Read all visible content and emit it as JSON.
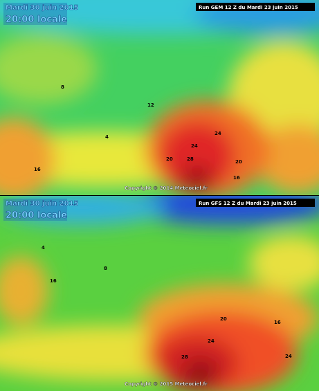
{
  "maps": [
    {
      "date": "Mardi 30 juin 2015",
      "time": "20:00 locale",
      "run": "Run GEM 12 Z du Mardi 23 juin 2015",
      "copyright": "Copyright © 2014 Meteociel.fr",
      "contour_labels": [
        28,
        24,
        24,
        20,
        20,
        16,
        16,
        12,
        8,
        4
      ]
    },
    {
      "date": "Mardi 30 juin 2015",
      "time": "20:00 locale",
      "run": "Run GFS 12 Z du Mardi 23 juin 2015",
      "copyright": "Copyright © 2015 Meteociel.fr",
      "contour_labels": [
        28,
        24,
        24,
        20,
        16,
        16,
        8,
        4
      ]
    }
  ]
}
